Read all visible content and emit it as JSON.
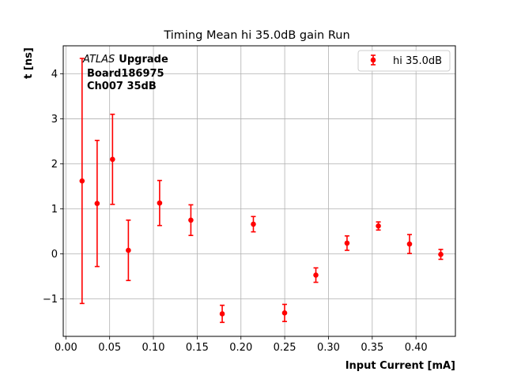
{
  "chart_data": {
    "type": "scatter",
    "title": "Timing Mean hi 35.0dB gain Run",
    "xlabel": "Input Current [mA]",
    "ylabel": "t [ns]",
    "xlim": [
      -0.003,
      0.445
    ],
    "ylim": [
      -1.83,
      4.62
    ],
    "xticks": [
      0.0,
      0.05,
      0.1,
      0.15,
      0.2,
      0.25,
      0.3,
      0.35,
      0.4
    ],
    "xtick_labels": [
      "0.00",
      "0.05",
      "0.10",
      "0.15",
      "0.20",
      "0.25",
      "0.30",
      "0.35",
      "0.40"
    ],
    "yticks": [
      -1,
      0,
      1,
      2,
      3,
      4
    ],
    "ytick_labels": [
      "−1",
      "0",
      "1",
      "2",
      "3",
      "4"
    ],
    "grid": true,
    "legend_position": "top-right",
    "color": "#ff0000",
    "annotation": {
      "atlas": "ATLAS",
      "upgrade": "Upgrade",
      "line2": "Board186975",
      "line3": "Ch007 35dB"
    },
    "series": [
      {
        "name": "hi 35.0dB",
        "x": [
          0.0185,
          0.0357,
          0.0533,
          0.0714,
          0.1071,
          0.1428,
          0.1786,
          0.2142,
          0.2499,
          0.2856,
          0.3212,
          0.357,
          0.3926,
          0.4283
        ],
        "y": [
          1.62,
          1.12,
          2.1,
          0.08,
          1.13,
          0.75,
          -1.33,
          0.66,
          -1.31,
          -0.47,
          0.24,
          0.62,
          0.22,
          -0.01
        ],
        "yerr": [
          2.72,
          1.4,
          1.0,
          0.67,
          0.5,
          0.34,
          0.19,
          0.17,
          0.19,
          0.16,
          0.16,
          0.09,
          0.21,
          0.11
        ]
      }
    ]
  }
}
